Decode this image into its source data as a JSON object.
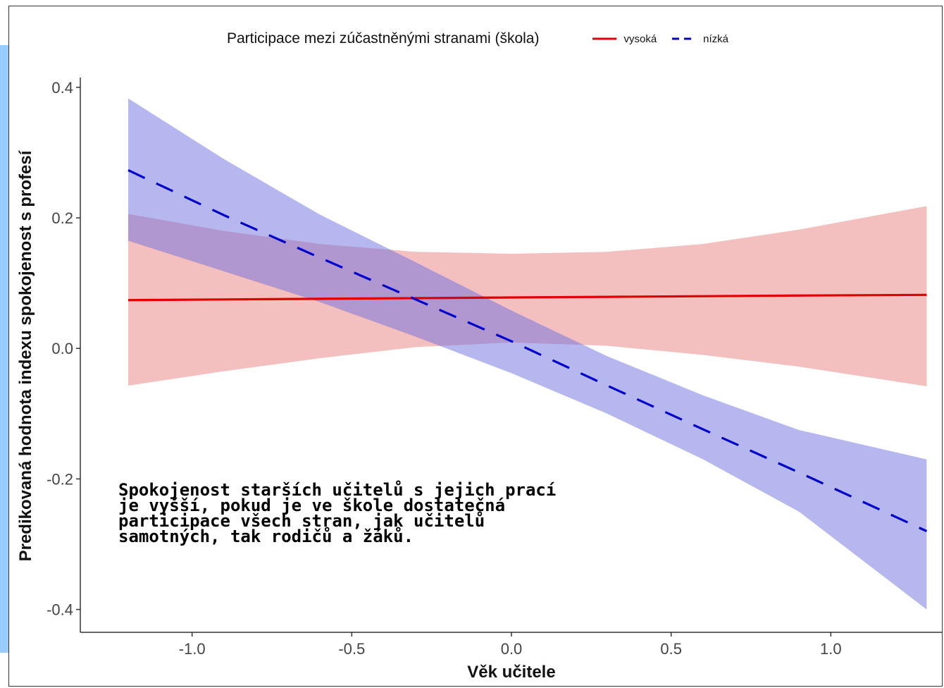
{
  "legend": {
    "title": "Participace mezi zúčastněnými stranami (škola)",
    "items": [
      {
        "label": "vysoká",
        "color": "#e00000",
        "style": "solid"
      },
      {
        "label": "nízká",
        "color": "#0000cc",
        "style": "dashed"
      }
    ]
  },
  "annotation": {
    "lines": [
      "Spokojenost starších učitelů s jejich prací",
      "je vyšší, pokud je ve škole dostatečná",
      "participace všech stran, jak učitelů",
      "samotných, tak rodičů a žáků."
    ]
  },
  "chart_data": {
    "type": "line",
    "xlabel": "Věk učitele",
    "ylabel": "Predikovaná hodnota indexu spokojenost s profesí",
    "xlim": [
      -1.35,
      1.35
    ],
    "ylim": [
      -0.435,
      0.415
    ],
    "x_ticks": [
      -1.0,
      -0.5,
      0.0,
      0.5,
      1.0
    ],
    "x_tick_labels": [
      "-1.0",
      "-0.5",
      "0.0",
      "0.5",
      "1.0"
    ],
    "y_ticks": [
      0.4,
      0.2,
      0.0,
      -0.2,
      -0.4
    ],
    "y_tick_labels": [
      "0.4",
      "0.2",
      "0.0",
      "-0.2",
      "-0.4"
    ],
    "grid": false,
    "legend_position": "top",
    "x": [
      -1.2,
      -0.9,
      -0.6,
      -0.3,
      0.0,
      0.3,
      0.6,
      0.9,
      1.3
    ],
    "series": [
      {
        "name": "vysoká",
        "color": "#e00000",
        "band_color": "#e88080",
        "line_style": "solid",
        "values": [
          0.074,
          0.075,
          0.076,
          0.077,
          0.078,
          0.079,
          0.08,
          0.081,
          0.082
        ],
        "lower": [
          -0.057,
          -0.035,
          -0.015,
          0.002,
          0.009,
          0.004,
          -0.01,
          -0.028,
          -0.058
        ],
        "upper": [
          0.206,
          0.18,
          0.16,
          0.148,
          0.145,
          0.148,
          0.16,
          0.182,
          0.218
        ]
      },
      {
        "name": "nízká",
        "color": "#0000cc",
        "band_color": "#7070e0",
        "line_style": "dashed",
        "values": [
          0.273,
          0.204,
          0.139,
          0.075,
          0.011,
          -0.057,
          -0.124,
          -0.19,
          -0.28
        ],
        "lower": [
          0.165,
          0.118,
          0.071,
          0.018,
          -0.038,
          -0.1,
          -0.17,
          -0.25,
          -0.4
        ],
        "upper": [
          0.383,
          0.29,
          0.205,
          0.132,
          0.058,
          -0.012,
          -0.072,
          -0.125,
          -0.17
        ]
      }
    ]
  }
}
